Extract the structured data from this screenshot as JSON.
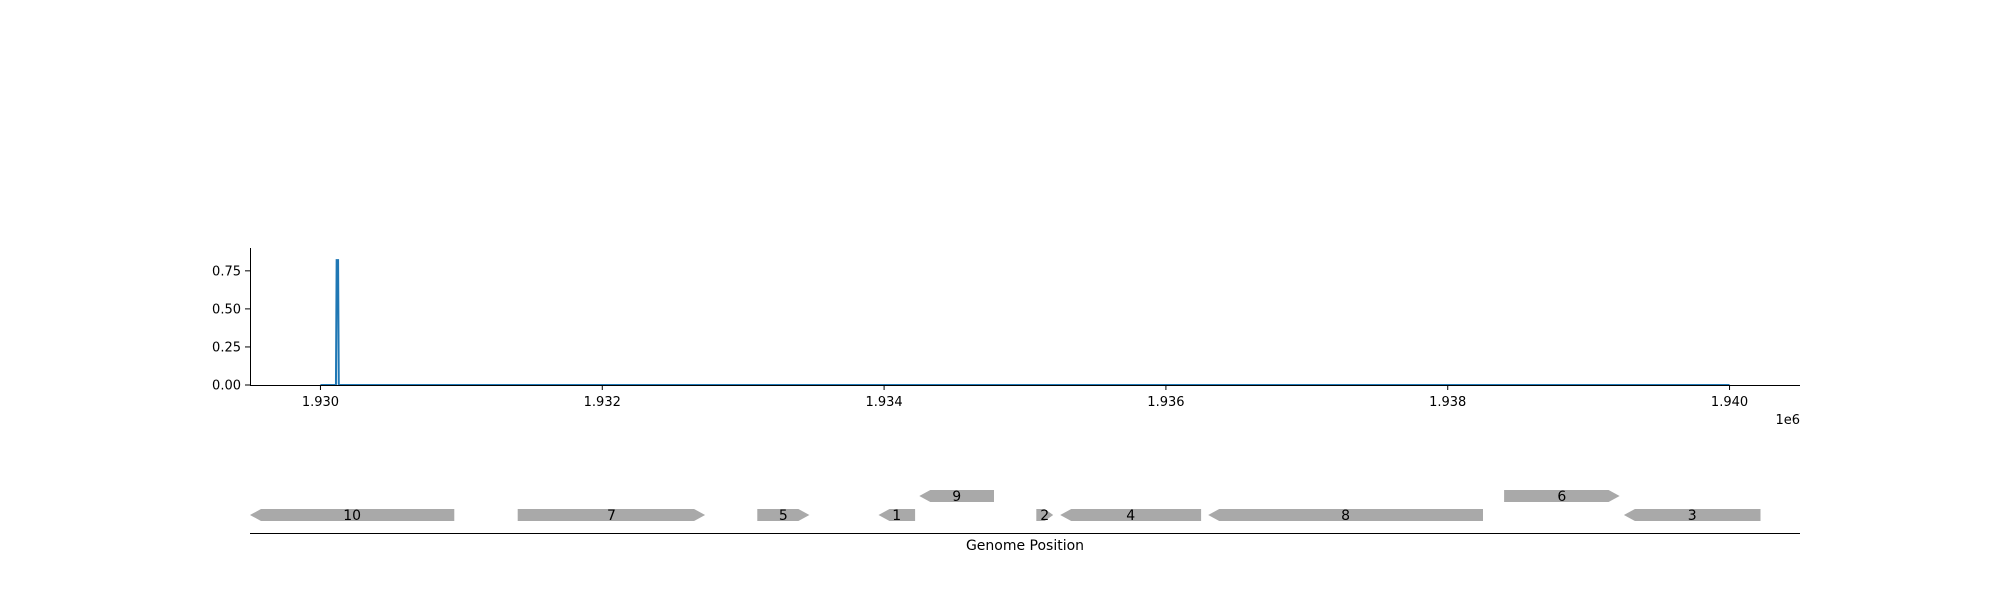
{
  "chart_data": [
    {
      "type": "line",
      "title": "",
      "xlabel": "",
      "ylabel": "",
      "x_offset_label": "1e6",
      "xlim": [
        1929500,
        1940500
      ],
      "ylim": [
        0,
        0.9
      ],
      "xticks": [
        1930000,
        1932000,
        1934000,
        1936000,
        1938000,
        1940000
      ],
      "xtick_labels": [
        "1.930",
        "1.932",
        "1.934",
        "1.936",
        "1.938",
        "1.940"
      ],
      "yticks": [
        0,
        0.25,
        0.5,
        0.75
      ],
      "ytick_labels": [
        "0.00",
        "0.25",
        "0.50",
        "0.75"
      ],
      "grid": false,
      "color": "#1f77b4",
      "series": [
        {
          "x": [
            1930000,
            1930110,
            1930115,
            1930125,
            1930130,
            1940000
          ],
          "y": [
            0,
            0,
            0.82,
            0.82,
            0,
            0
          ]
        }
      ]
    },
    {
      "type": "gene_track",
      "xlabel": "Genome Position",
      "xlim": [
        1929500,
        1940500
      ],
      "feature_color": "#a9a9a9",
      "genes": [
        {
          "label": "10",
          "start": 1929500,
          "end": 1930950,
          "strand": -1,
          "row": 0
        },
        {
          "label": "7",
          "start": 1931400,
          "end": 1932730,
          "strand": 1,
          "row": 0
        },
        {
          "label": "5",
          "start": 1933100,
          "end": 1933470,
          "strand": 1,
          "row": 0
        },
        {
          "label": "1",
          "start": 1933960,
          "end": 1934220,
          "strand": -1,
          "row": 0
        },
        {
          "label": "9",
          "start": 1934250,
          "end": 1934780,
          "strand": -1,
          "row": 1
        },
        {
          "label": "2",
          "start": 1935080,
          "end": 1935200,
          "strand": 1,
          "row": 0
        },
        {
          "label": "4",
          "start": 1935250,
          "end": 1936250,
          "strand": -1,
          "row": 0
        },
        {
          "label": "8",
          "start": 1936300,
          "end": 1938250,
          "strand": -1,
          "row": 0
        },
        {
          "label": "6",
          "start": 1938400,
          "end": 1939220,
          "strand": 1,
          "row": 1
        },
        {
          "label": "3",
          "start": 1939250,
          "end": 1940220,
          "strand": -1,
          "row": 0
        }
      ]
    }
  ]
}
